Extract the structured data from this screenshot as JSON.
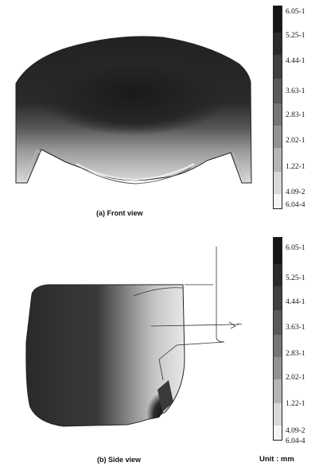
{
  "figure": {
    "front": {
      "caption": "(a) Front view",
      "legend": [
        "6.05-1",
        "5.25-1",
        "4.44-1",
        "3.63-1",
        "2.83-1",
        "2.02-1",
        "1.22-1",
        "4.09-2",
        "6.04-4"
      ]
    },
    "side": {
      "caption": "(b) Side view",
      "legend": [
        "6.05-1",
        "5.25-1",
        "4.44-1",
        "3.63-1",
        "2.83-1",
        "2.02-1",
        "1.22-1",
        "4.09-2",
        "6.04-4"
      ]
    },
    "unit_label": "Unit : mm"
  },
  "colors": {
    "scale": [
      "#161616",
      "#2b2b2b",
      "#404040",
      "#5a5a5a",
      "#757575",
      "#939393",
      "#b5b5b5",
      "#d8d8d8",
      "#f4f4f4"
    ],
    "outline": "#222222"
  }
}
